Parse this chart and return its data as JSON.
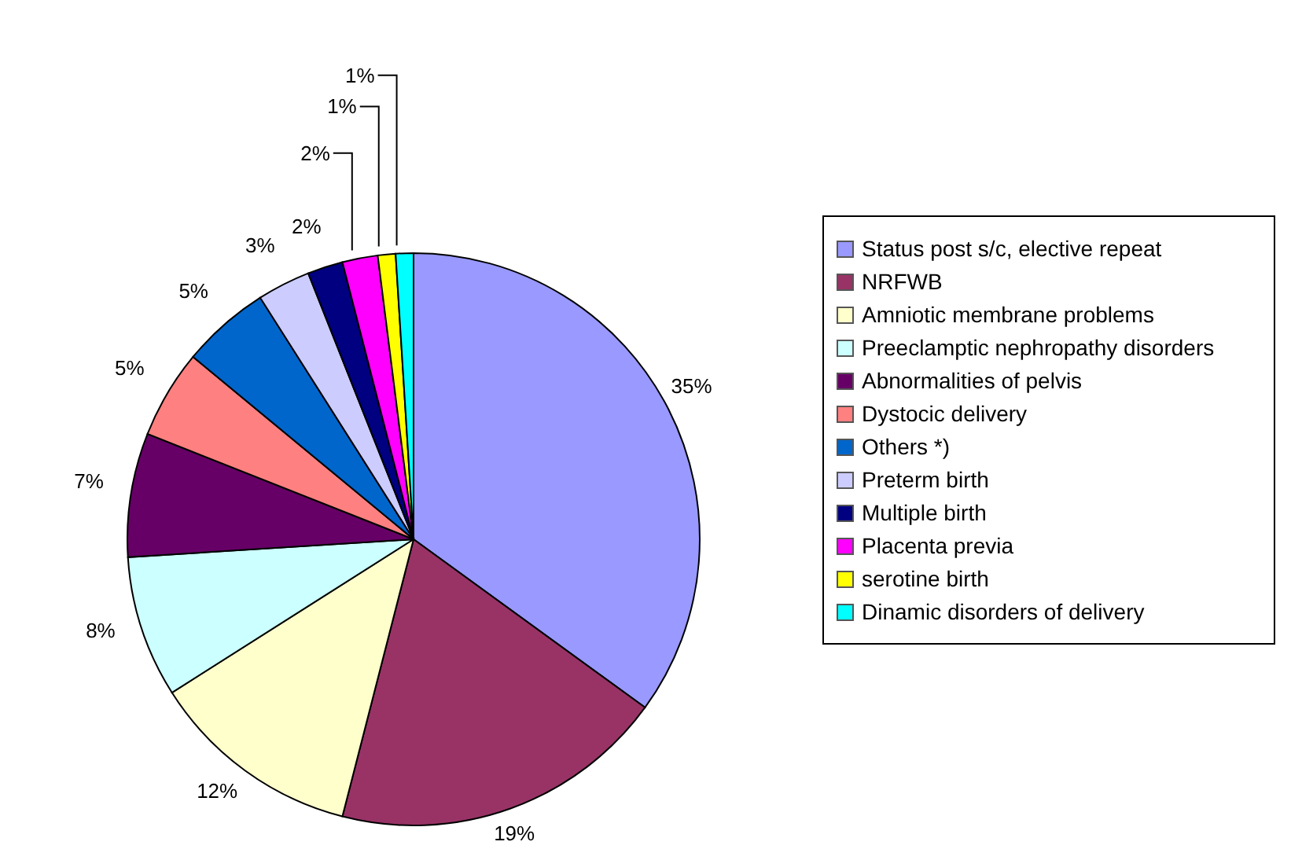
{
  "chart_data": {
    "type": "pie",
    "categories": [
      "Status post s/c, elective repeat",
      "NRFWB",
      "Amniotic membrane problems",
      "Preeclamptic nephropathy disorders",
      "Abnormalities of pelvis",
      "Dystocic delivery",
      "Others *)",
      "Preterm birth",
      "Multiple birth",
      "Placenta previa",
      "serotine birth",
      "Dinamic disorders of delivery"
    ],
    "values": [
      35,
      19,
      12,
      8,
      7,
      5,
      5,
      3,
      2,
      2,
      1,
      1
    ],
    "colors": [
      "#9999ff",
      "#993366",
      "#ffffcc",
      "#ccffff",
      "#660066",
      "#ff8080",
      "#0066cc",
      "#ccccff",
      "#000080",
      "#ff00ff",
      "#ffff00",
      "#00ffff"
    ],
    "value_labels": [
      "35%",
      "19%",
      "12%",
      "8%",
      "7%",
      "5%",
      "5%",
      "3%",
      "2%",
      "2%",
      "1%",
      "1%"
    ],
    "legend": "right"
  }
}
